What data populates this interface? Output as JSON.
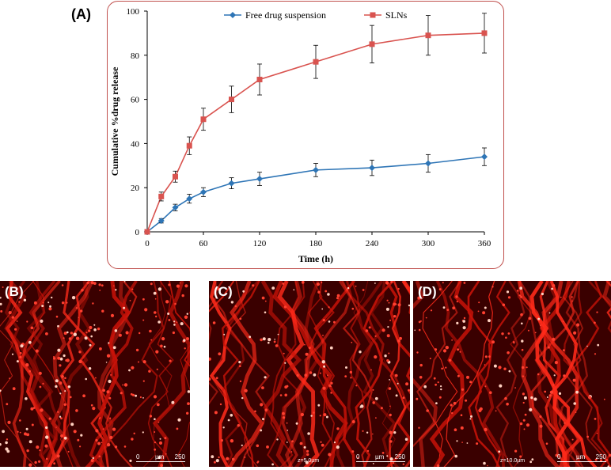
{
  "panels": {
    "a_label": "(A)",
    "b_label": "(B)",
    "c_label": "(C)",
    "d_label": "(D)"
  },
  "chart_data": {
    "type": "line",
    "xlabel": "Time (h)",
    "ylabel": "Cumulative %drug release",
    "xlim": [
      0,
      360
    ],
    "ylim": [
      0,
      100
    ],
    "xticks": [
      0,
      60,
      120,
      180,
      240,
      300,
      360
    ],
    "yticks": [
      0,
      20,
      40,
      60,
      80,
      100
    ],
    "legend_position": "top",
    "grid": false,
    "x": [
      0,
      15,
      30,
      45,
      60,
      90,
      120,
      180,
      240,
      300,
      360
    ],
    "series": [
      {
        "name": "Free drug suspension",
        "color": "#2e75b6",
        "marker": "diamond",
        "values": [
          0,
          5,
          11,
          15,
          18,
          22,
          24,
          28,
          29,
          31,
          34
        ],
        "errors": [
          0,
          1,
          1.5,
          2,
          2,
          2.5,
          3,
          3,
          3.5,
          4,
          4
        ]
      },
      {
        "name": "SLNs",
        "color": "#d9534f",
        "marker": "square",
        "values": [
          0,
          16,
          25,
          39,
          51,
          60,
          69,
          77,
          85,
          89,
          90
        ],
        "errors": [
          0,
          2,
          2.5,
          4,
          5,
          6,
          7,
          7.5,
          8.5,
          9,
          9
        ]
      }
    ]
  },
  "micrographs": {
    "b": {
      "scale_start": "0",
      "scale_unit": "µm",
      "scale_end": "250",
      "z": ""
    },
    "c": {
      "scale_start": "0",
      "scale_unit": "µm",
      "scale_end": "250",
      "z": "z=5.0µm"
    },
    "d": {
      "scale_start": "0",
      "scale_unit": "µm",
      "scale_end": "250",
      "z": "z=10.0µm"
    }
  }
}
